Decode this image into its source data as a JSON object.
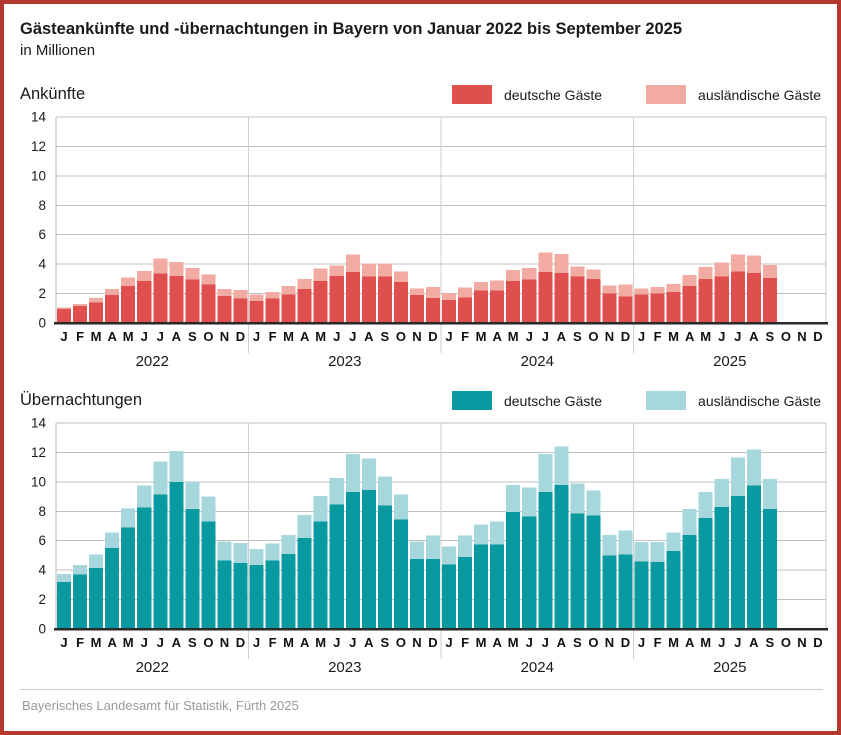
{
  "header": {
    "title": "Gästeankünfte und -übernachtungen in Bayern von Januar 2022 bis September 2025",
    "subtitle": "in Millionen"
  },
  "footer": {
    "source": "Bayerisches Landesamt für Statistik, Fürth 2025"
  },
  "colors": {
    "frame": "#b5382e",
    "arrivals_domestic": "#de4f4d",
    "arrivals_foreign": "#f2aba3",
    "nights_domestic": "#0899a1",
    "nights_foreign": "#a5d7dc",
    "gridline": "#c0c0c0",
    "axis": "#2a2a2a"
  },
  "chart_data": [
    {
      "type": "bar",
      "stacked": true,
      "title": "Ankünfte",
      "unit": "Millionen",
      "ylim": [
        0,
        14
      ],
      "ytick_step": 2,
      "grid": true,
      "legend_position": "top-right",
      "x_axis": {
        "month_letters": [
          "J",
          "F",
          "M",
          "A",
          "M",
          "J",
          "J",
          "A",
          "S",
          "O",
          "N",
          "D"
        ],
        "years": [
          "2022",
          "2023",
          "2024",
          "2025"
        ],
        "total_slots": 48,
        "note": "bars end September 2025"
      },
      "legend": [
        {
          "label": "deutsche Gäste",
          "color": "#de4f4d"
        },
        {
          "label": "ausländische Gäste",
          "color": "#f2aba3"
        }
      ],
      "series": [
        {
          "name": "deutsche Gäste",
          "color": "#de4f4d",
          "values": [
            0.95,
            1.15,
            1.4,
            1.9,
            2.5,
            2.85,
            3.35,
            3.2,
            2.95,
            2.6,
            1.85,
            1.65,
            1.5,
            1.65,
            1.95,
            2.3,
            2.85,
            3.2,
            3.45,
            3.15,
            3.15,
            2.8,
            1.9,
            1.7,
            1.55,
            1.75,
            2.2,
            2.2,
            2.85,
            2.95,
            3.45,
            3.4,
            3.15,
            3.0,
            2.0,
            1.8,
            1.95,
            2.0,
            2.1,
            2.5,
            3.0,
            3.15,
            3.5,
            3.4,
            3.05
          ]
        },
        {
          "name": "ausländische Gäste",
          "color": "#f2aba3",
          "values": [
            0.1,
            0.15,
            0.3,
            0.4,
            0.6,
            0.7,
            1.05,
            0.95,
            0.8,
            0.7,
            0.45,
            0.6,
            0.45,
            0.45,
            0.55,
            0.7,
            0.85,
            0.7,
            1.2,
            0.9,
            0.9,
            0.7,
            0.45,
            0.75,
            0.5,
            0.65,
            0.6,
            0.7,
            0.75,
            0.8,
            1.35,
            1.3,
            0.7,
            0.65,
            0.55,
            0.8,
            0.4,
            0.45,
            0.55,
            0.75,
            0.8,
            0.95,
            1.15,
            1.2,
            0.9
          ]
        }
      ]
    },
    {
      "type": "bar",
      "stacked": true,
      "title": "Übernachtungen",
      "unit": "Millionen",
      "ylim": [
        0,
        14
      ],
      "ytick_step": 2,
      "grid": true,
      "legend_position": "top-right",
      "x_axis": {
        "month_letters": [
          "J",
          "F",
          "M",
          "A",
          "M",
          "J",
          "J",
          "A",
          "S",
          "O",
          "N",
          "D"
        ],
        "years": [
          "2022",
          "2023",
          "2024",
          "2025"
        ],
        "total_slots": 48,
        "note": "bars end September 2025"
      },
      "legend": [
        {
          "label": "deutsche Gäste",
          "color": "#0899a1"
        },
        {
          "label": "ausländische Gäste",
          "color": "#a5d7dc"
        }
      ],
      "series": [
        {
          "name": "deutsche Gäste",
          "color": "#0899a1",
          "values": [
            3.2,
            3.7,
            4.15,
            5.5,
            6.9,
            8.25,
            9.15,
            10.0,
            8.15,
            7.3,
            4.65,
            4.5,
            4.35,
            4.65,
            5.1,
            6.2,
            7.3,
            8.45,
            9.3,
            9.45,
            8.4,
            7.45,
            4.75,
            4.75,
            4.4,
            4.9,
            5.75,
            5.75,
            7.95,
            7.65,
            9.3,
            9.8,
            7.85,
            7.7,
            5.0,
            5.05,
            4.6,
            4.55,
            5.3,
            6.4,
            7.55,
            8.3,
            9.05,
            9.75,
            8.15
          ]
        },
        {
          "name": "ausländische Gäste",
          "color": "#a5d7dc",
          "values": [
            0.55,
            0.65,
            0.9,
            1.05,
            1.3,
            1.5,
            2.25,
            2.1,
            1.85,
            1.7,
            1.3,
            1.35,
            1.1,
            1.15,
            1.3,
            1.55,
            1.75,
            1.8,
            2.6,
            2.15,
            1.95,
            1.7,
            1.2,
            1.6,
            1.2,
            1.45,
            1.35,
            1.55,
            1.85,
            1.95,
            2.6,
            2.6,
            2.05,
            1.7,
            1.4,
            1.65,
            1.3,
            1.35,
            1.25,
            1.75,
            1.75,
            1.9,
            2.6,
            2.45,
            2.05
          ]
        }
      ]
    }
  ]
}
